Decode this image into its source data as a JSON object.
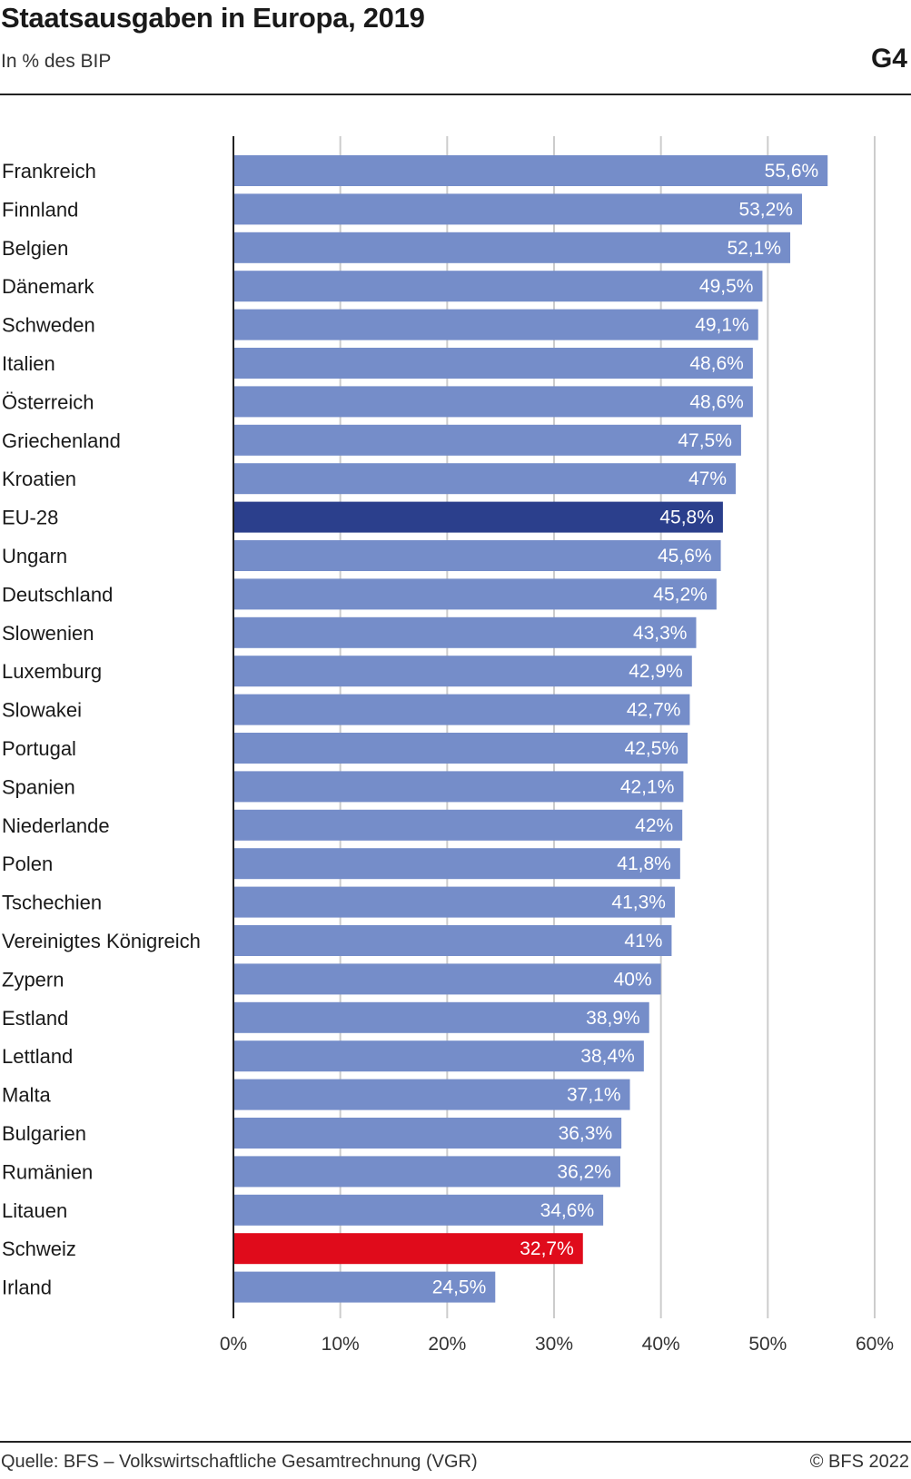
{
  "header": {
    "title": "Staatsausgaben in Europa, 2019",
    "subtitle": "In % des BIP",
    "code": "G4"
  },
  "footer": {
    "source": "Quelle: BFS – Volkswirtschaftliche Gesamtrechnung (VGR)",
    "copyright": "© BFS 2022"
  },
  "colors": {
    "bar": "#758dc9",
    "highlight_eu": "#2b3f8c",
    "highlight_ch": "#e00b1b",
    "grid": "#cccccc",
    "axis": "#222222"
  },
  "chart_data": {
    "type": "bar",
    "orientation": "horizontal",
    "title": "Staatsausgaben in Europa, 2019",
    "subtitle": "In % des BIP",
    "xlim": [
      0,
      60
    ],
    "xticks": [
      0,
      10,
      20,
      30,
      40,
      50,
      60
    ],
    "xtick_labels": [
      "0%",
      "10%",
      "20%",
      "30%",
      "40%",
      "50%",
      "60%"
    ],
    "grid": true,
    "categories": [
      "Frankreich",
      "Finnland",
      "Belgien",
      "Dänemark",
      "Schweden",
      "Italien",
      "Österreich",
      "Griechenland",
      "Kroatien",
      "EU-28",
      "Ungarn",
      "Deutschland",
      "Slowenien",
      "Luxemburg",
      "Slowakei",
      "Portugal",
      "Spanien",
      "Niederlande",
      "Polen",
      "Tschechien",
      "Vereinigtes Königreich",
      "Zypern",
      "Estland",
      "Lettland",
      "Malta",
      "Bulgarien",
      "Rumänien",
      "Litauen",
      "Schweiz",
      "Irland"
    ],
    "values": [
      55.6,
      53.2,
      52.1,
      49.5,
      49.1,
      48.6,
      48.6,
      47.5,
      47.0,
      45.8,
      45.6,
      45.2,
      43.3,
      42.9,
      42.7,
      42.5,
      42.1,
      42.0,
      41.8,
      41.3,
      41.0,
      40.0,
      38.9,
      38.4,
      37.1,
      36.3,
      36.2,
      34.6,
      32.7,
      24.5
    ],
    "data_labels": [
      "55,6%",
      "53,2%",
      "52,1%",
      "49,5%",
      "49,1%",
      "48,6%",
      "48,6%",
      "47,5%",
      "47%",
      "45,8%",
      "45,6%",
      "45,2%",
      "43,3%",
      "42,9%",
      "42,7%",
      "42,5%",
      "42,1%",
      "42%",
      "41,8%",
      "41,3%",
      "41%",
      "40%",
      "38,9%",
      "38,4%",
      "37,1%",
      "36,3%",
      "36,2%",
      "34,6%",
      "32,7%",
      "24,5%"
    ],
    "highlights": {
      "EU-28": "highlight_eu",
      "Schweiz": "highlight_ch"
    }
  }
}
